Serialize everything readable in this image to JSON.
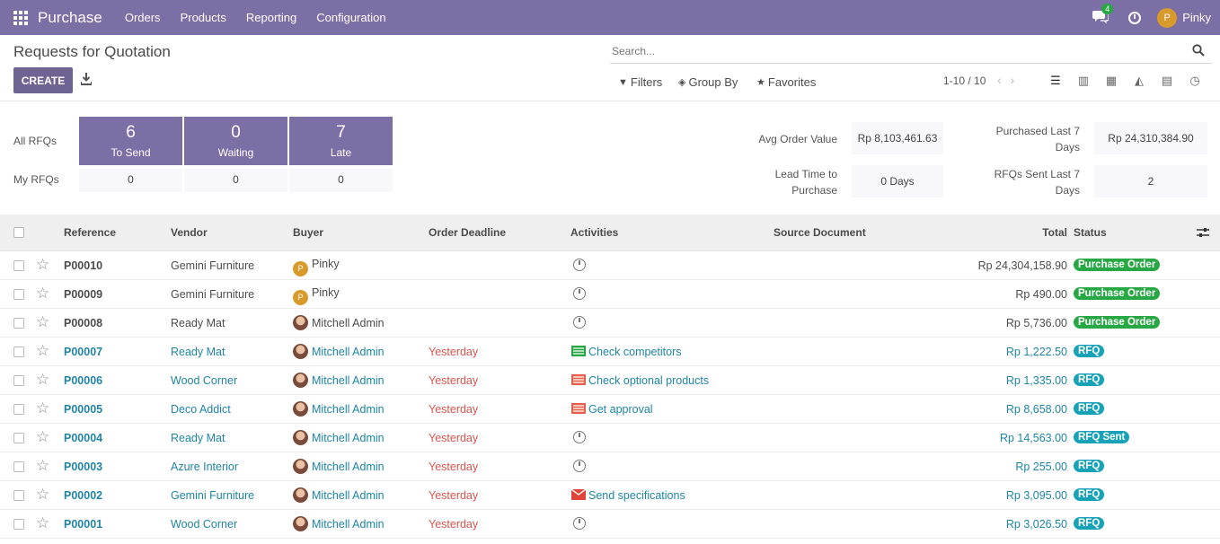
{
  "topbar": {
    "app_name": "Purchase",
    "menu": [
      "Orders",
      "Products",
      "Reporting",
      "Configuration"
    ],
    "chat_count": "4",
    "user_initial": "P",
    "user_name": "Pinky"
  },
  "control": {
    "title": "Requests for Quotation",
    "create_label": "CREATE",
    "search_placeholder": "Search...",
    "filters_label": "Filters",
    "groupby_label": "Group By",
    "favorites_label": "Favorites",
    "pager": "1-10 / 10"
  },
  "dashboard": {
    "all_label": "All RFQs",
    "my_label": "My RFQs",
    "tiles": [
      {
        "num": "6",
        "label": "To Send",
        "mine": "0"
      },
      {
        "num": "0",
        "label": "Waiting",
        "mine": "0"
      },
      {
        "num": "7",
        "label": "Late",
        "mine": "0"
      }
    ],
    "avg_order_label": "Avg Order Value",
    "avg_order_value": "Rp 8,103,461.63",
    "lead_time_label_1": "Lead Time to",
    "lead_time_label_2": "Purchase",
    "lead_time_value": "0 Days",
    "purchased_label_1": "Purchased Last 7",
    "purchased_label_2": "Days",
    "purchased_value": "Rp 24,310,384.90",
    "rfqs_sent_label_1": "RFQs Sent Last 7",
    "rfqs_sent_label_2": "Days",
    "rfqs_sent_value": "2"
  },
  "table": {
    "headers": {
      "reference": "Reference",
      "vendor": "Vendor",
      "buyer": "Buyer",
      "deadline": "Order Deadline",
      "activities": "Activities",
      "source": "Source Document",
      "total": "Total",
      "status": "Status"
    },
    "rows": [
      {
        "ref": "P00010",
        "vendor": "Gemini Furniture",
        "buyer": "Pinky",
        "deadline": "",
        "activity": "",
        "total": "Rp 24,304,158.90",
        "status": "Purchase Order"
      },
      {
        "ref": "P00009",
        "vendor": "Gemini Furniture",
        "buyer": "Pinky",
        "deadline": "",
        "activity": "",
        "total": "Rp 490.00",
        "status": "Purchase Order"
      },
      {
        "ref": "P00008",
        "vendor": "Ready Mat",
        "buyer": "Mitchell Admin",
        "deadline": "",
        "activity": "",
        "total": "Rp 5,736.00",
        "status": "Purchase Order"
      },
      {
        "ref": "P00007",
        "vendor": "Ready Mat",
        "buyer": "Mitchell Admin",
        "deadline": "Yesterday",
        "activity": "Check competitors",
        "total": "Rp 1,222.50",
        "status": "RFQ"
      },
      {
        "ref": "P00006",
        "vendor": "Wood Corner",
        "buyer": "Mitchell Admin",
        "deadline": "Yesterday",
        "activity": "Check optional products",
        "total": "Rp 1,335.00",
        "status": "RFQ"
      },
      {
        "ref": "P00005",
        "vendor": "Deco Addict",
        "buyer": "Mitchell Admin",
        "deadline": "Yesterday",
        "activity": "Get approval",
        "total": "Rp 8,658.00",
        "status": "RFQ"
      },
      {
        "ref": "P00004",
        "vendor": "Ready Mat",
        "buyer": "Mitchell Admin",
        "deadline": "Yesterday",
        "activity": "",
        "total": "Rp 14,563.00",
        "status": "RFQ Sent"
      },
      {
        "ref": "P00003",
        "vendor": "Azure Interior",
        "buyer": "Mitchell Admin",
        "deadline": "Yesterday",
        "activity": "",
        "total": "Rp 255.00",
        "status": "RFQ"
      },
      {
        "ref": "P00002",
        "vendor": "Gemini Furniture",
        "buyer": "Mitchell Admin",
        "deadline": "Yesterday",
        "activity": "Send specifications",
        "total": "Rp 3,095.00",
        "status": "RFQ"
      },
      {
        "ref": "P00001",
        "vendor": "Wood Corner",
        "buyer": "Mitchell Admin",
        "deadline": "Yesterday",
        "activity": "",
        "total": "Rp 3,026.50",
        "status": "RFQ"
      }
    ]
  }
}
